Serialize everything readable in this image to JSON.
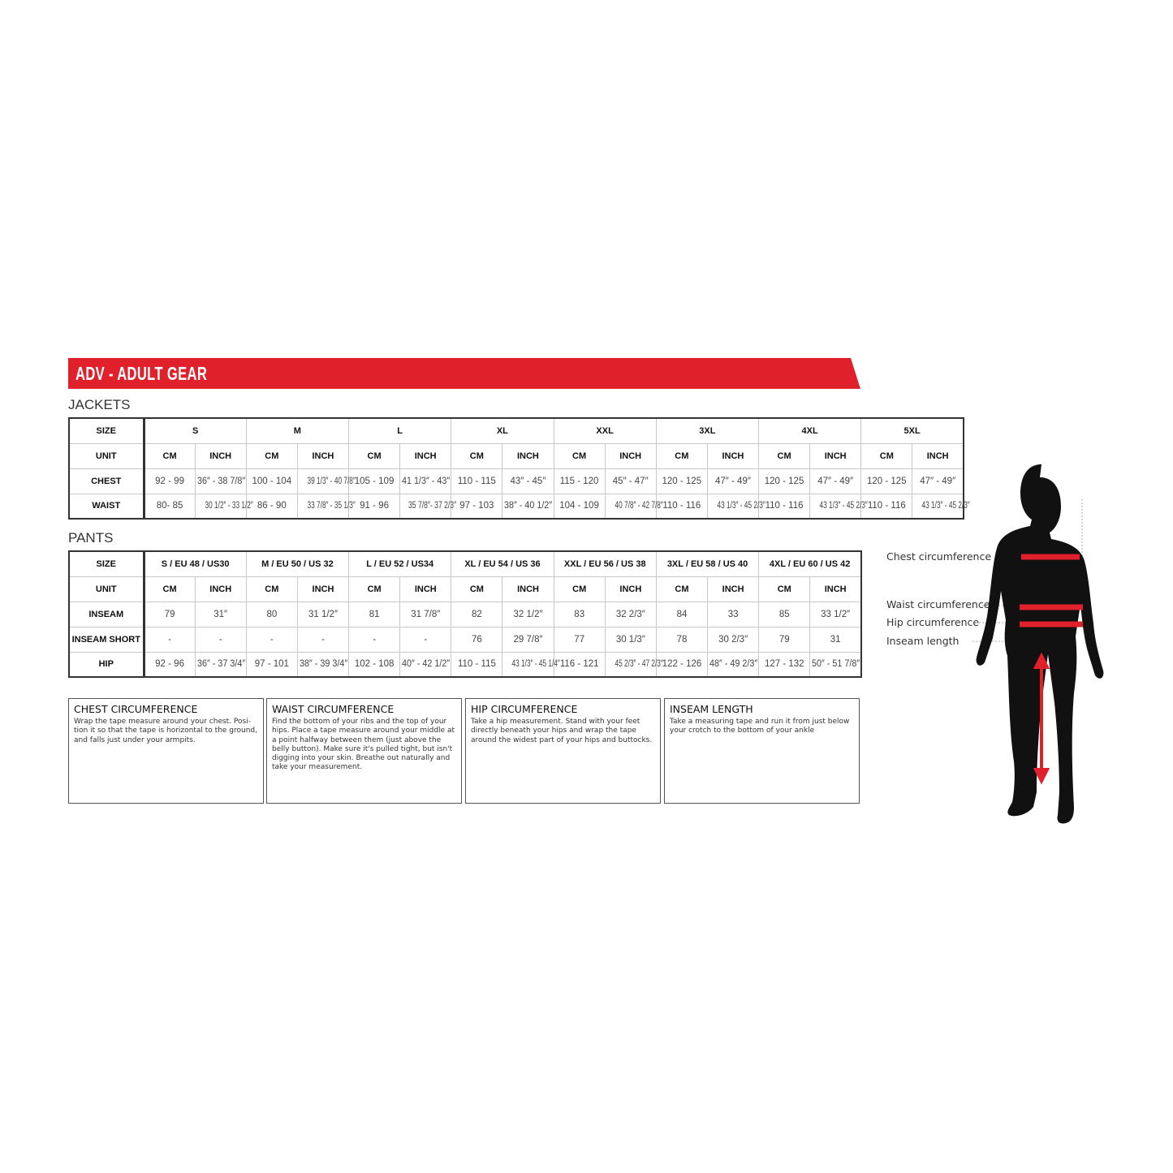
{
  "header": {
    "title": "ADV - ADULT GEAR",
    "brand_color": "#e0202a"
  },
  "jackets": {
    "title": "JACKETS",
    "size_label": "SIZE",
    "unit_label": "UNIT",
    "sizes": [
      "S",
      "M",
      "L",
      "XL",
      "XXL",
      "3XL",
      "4XL",
      "5XL"
    ],
    "units": [
      "CM",
      "INCH"
    ],
    "rows": [
      {
        "label": "CHEST",
        "values": [
          "92 - 99",
          "36″ - 38 7/8″",
          "100 - 104",
          "39 1/3″ - 40 7/8″",
          "105 - 109",
          "41 1/3″ - 43″",
          "110 - 115",
          "43″ - 45″",
          "115 - 120",
          "45″ - 47″",
          "120 - 125",
          "47″ - 49″",
          "120 - 125",
          "47″ - 49″",
          "120 - 125",
          "47″ - 49″"
        ]
      },
      {
        "label": "WAIST",
        "values": [
          "80- 85",
          "30 1/2″ - 33 1/2″",
          "86 - 90",
          "33 7/8″ - 35 1/3″",
          "91 - 96",
          "35 7/8″- 37 2/3″",
          "97 - 103",
          "38″ - 40 1/2″",
          "104 - 109",
          "40 7/8″ - 42 7/8″",
          "110 - 116",
          "43 1/3″ - 45 2/3″",
          "110 - 116",
          "43 1/3″ - 45 2/3″",
          "110 - 116",
          "43 1/3″ - 45 2/3″"
        ]
      }
    ]
  },
  "pants": {
    "title": "PANTS",
    "size_label": "SIZE",
    "unit_label": "UNIT",
    "sizes": [
      "S / EU 48 / US30",
      "M / EU 50 / US 32",
      "L / EU 52 / US34",
      "XL / EU 54 / US 36",
      "XXL / EU 56 / US 38",
      "3XL / EU 58 / US 40",
      "4XL / EU 60 / US 42"
    ],
    "units": [
      "CM",
      "INCH"
    ],
    "rows": [
      {
        "label": "INSEAM",
        "values": [
          "79",
          "31″",
          "80",
          "31 1/2″",
          "81",
          "31 7/8″",
          "82",
          "32 1/2″",
          "83",
          "32 2/3″",
          "84",
          "33",
          "85",
          "33 1/2″"
        ]
      },
      {
        "label": "INSEAM SHORT",
        "values": [
          "-",
          "-",
          "-",
          "-",
          "-",
          "-",
          "76",
          "29 7/8″",
          "77",
          "30 1/3″",
          "78",
          "30 2/3″",
          "79",
          "31"
        ]
      },
      {
        "label": "HIP",
        "values": [
          "92 - 96",
          "36″ - 37 3/4″",
          "97 - 101",
          "38″ - 39 3/4″",
          "102 - 108",
          "40″ - 42 1/2″",
          "110 - 115",
          "43 1/3″ - 45 1/4″",
          "116 - 121",
          "45 2/3″ - 47 2/3″",
          "122 - 126",
          "48″ - 49 2/3″",
          "127 - 132",
          "50″ - 51 7/8″"
        ]
      }
    ]
  },
  "guides": [
    {
      "title": "CHEST CIRCUMFERENCE",
      "text": "Wrap the tape measure around your chest. Posi-tion it so that the tape is horizontal to the ground, and falls just under your armpits."
    },
    {
      "title": "WAIST CIRCUMFERENCE",
      "text": "Find the bottom of your ribs and the top of your hips. Place a tape measure around your middle at a point halfway between them (just above the belly button). Make sure it's pulled tight, but isn't digging into your skin. Breathe out naturally and take your measurement."
    },
    {
      "title": "HIP CIRCUMFERENCE",
      "text": "Take a hip measurement. Stand with your feet directly beneath your hips and wrap the tape around the widest part of your hips and buttocks."
    },
    {
      "title": "INSEAM LENGTH",
      "text": "Take a measuring tape and run it from just below your crotch to the bottom of your ankle"
    }
  ],
  "figure": {
    "labels": [
      "Chest circumference",
      "Waist circumference",
      "Hip circumference",
      "Inseam length"
    ]
  }
}
